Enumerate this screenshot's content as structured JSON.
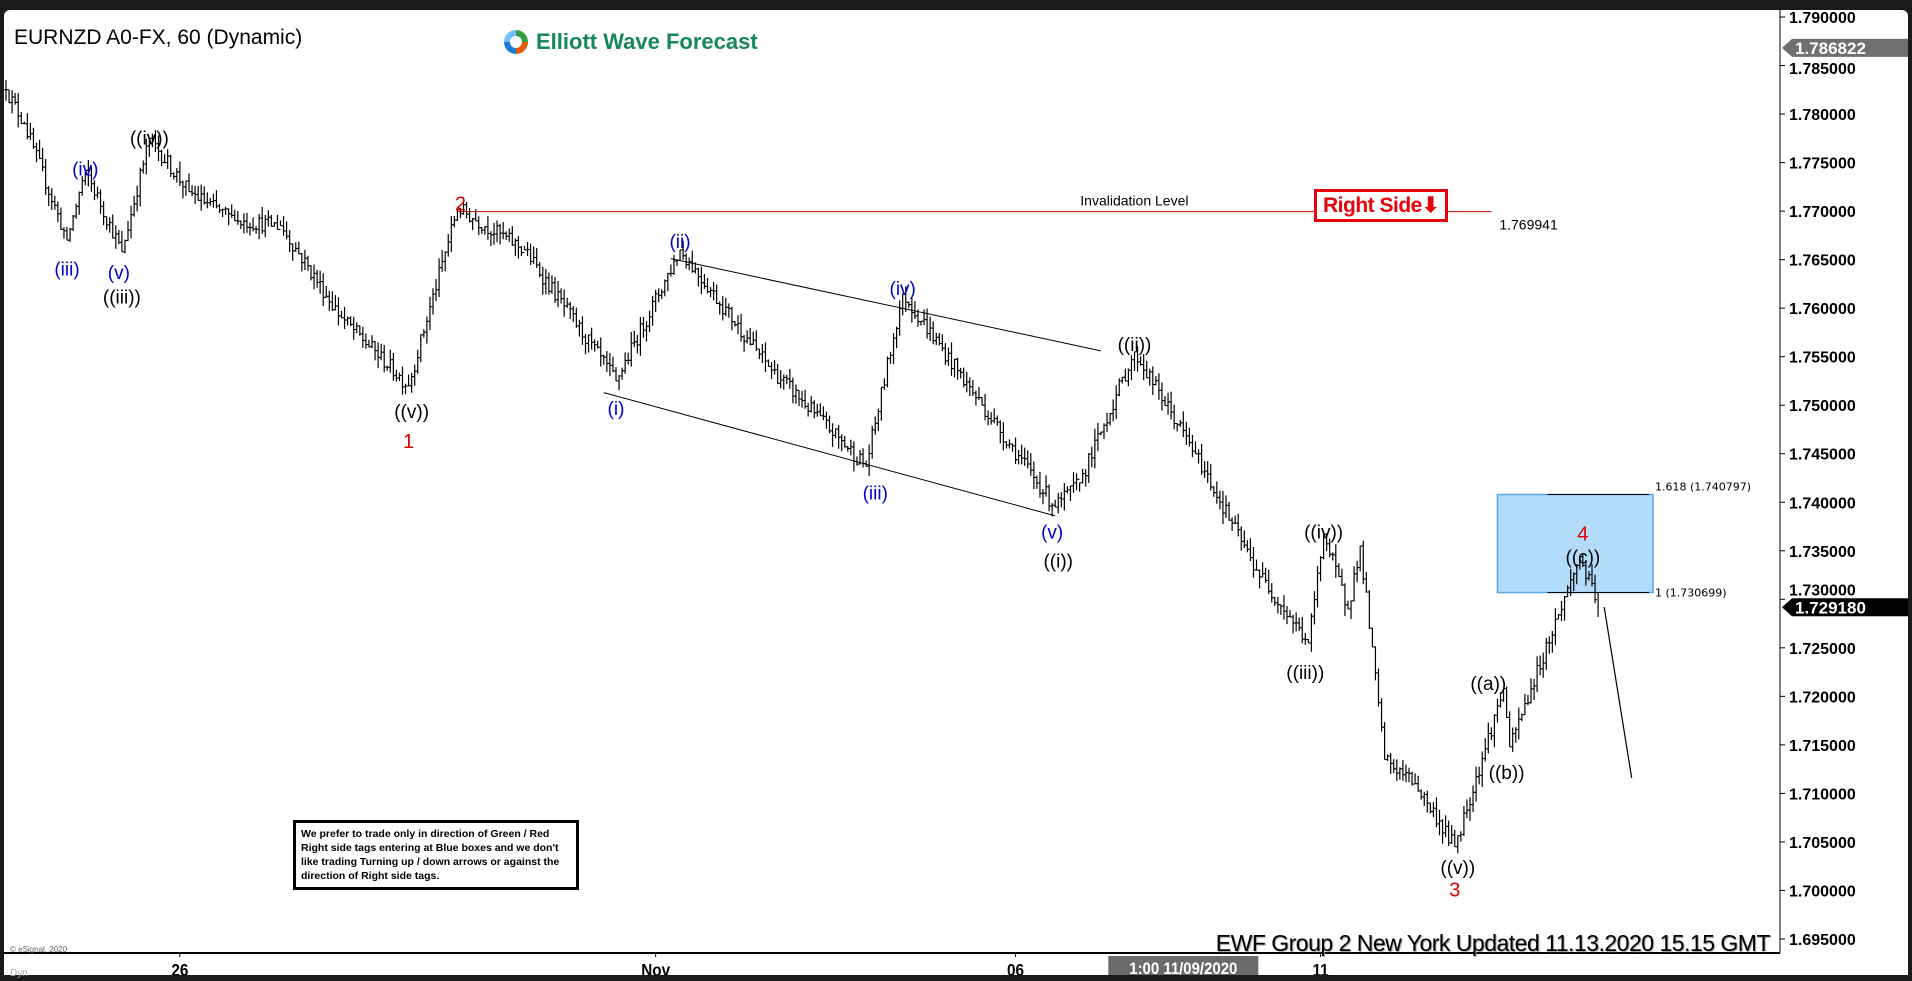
{
  "header": {
    "title": "EURNZD A0-FX, 60 (Dynamic)",
    "logo_text": "Elliott Wave Forecast"
  },
  "footer": {
    "updated": "EWF Group 2 New York Updated 11.13.2020 15.15 GMT",
    "copyright": "© eSignal, 2020",
    "dyn": "Dyn"
  },
  "disclaimer": "We prefer to trade only in direction of Green / Red Right side tags entering at Blue boxes and we don't like trading Turning up / down arrows or against the direction of Right side tags.",
  "right_side_tag": {
    "label": "Right Side",
    "arrow": "⬇",
    "color": "#e8000b"
  },
  "crosshair_time": "1:00 11/09/2020",
  "chart_data": {
    "type": "ohlc",
    "symbol": "EURNZD",
    "timeframe": "60",
    "ylim": [
      1.695,
      1.79
    ],
    "y_ticks": [
      "1.790000",
      "1.785000",
      "1.780000",
      "1.775000",
      "1.770000",
      "1.765000",
      "1.760000",
      "1.755000",
      "1.750000",
      "1.745000",
      "1.740000",
      "1.735000",
      "1.730000",
      "1.725000",
      "1.720000",
      "1.715000",
      "1.710000",
      "1.705000",
      "1.700000",
      "1.695000"
    ],
    "x_ticks": [
      {
        "bar": 57,
        "label": "26"
      },
      {
        "bar": 213,
        "label": "Nov"
      },
      {
        "bar": 331,
        "label": "06"
      },
      {
        "bar": 431,
        "label": "11"
      }
    ],
    "crosshair_bar": 386,
    "price_path": [
      [
        0,
        1.7825
      ],
      [
        6,
        1.779
      ],
      [
        20,
        1.767
      ],
      [
        26,
        1.7742
      ],
      [
        38,
        1.7658
      ],
      [
        47,
        1.7775
      ],
      [
        60,
        1.772
      ],
      [
        75,
        1.769
      ],
      [
        90,
        1.7685
      ],
      [
        110,
        1.759
      ],
      [
        132,
        1.752
      ],
      [
        148,
        1.7703
      ],
      [
        170,
        1.766
      ],
      [
        200,
        1.7525
      ],
      [
        221,
        1.766
      ],
      [
        250,
        1.754
      ],
      [
        282,
        1.7437
      ],
      [
        294,
        1.7615
      ],
      [
        320,
        1.75
      ],
      [
        344,
        1.7395
      ],
      [
        352,
        1.742
      ],
      [
        370,
        1.7555
      ],
      [
        390,
        1.745
      ],
      [
        410,
        1.733
      ],
      [
        427,
        1.7255
      ],
      [
        432,
        1.7367
      ],
      [
        440,
        1.729
      ],
      [
        444,
        1.7355
      ],
      [
        452,
        1.7135
      ],
      [
        462,
        1.711
      ],
      [
        475,
        1.7045
      ],
      [
        491,
        1.7208
      ],
      [
        493,
        1.7148
      ],
      [
        516,
        1.7344
      ],
      [
        522,
        1.72918
      ]
    ],
    "last_price": {
      "label": "1.729180",
      "value": 1.72918
    },
    "high_marker": {
      "label": "1.786822",
      "value": 1.786822
    },
    "invalidation": {
      "label": "Invalidation Level",
      "price_label": "1.769941",
      "value": 1.769941,
      "from_bar": 148,
      "to_bar": 487,
      "color": "#d00000"
    },
    "channel": [
      {
        "from": [
          196,
          1.7513
        ],
        "to": [
          344,
          1.7386
        ]
      },
      {
        "from": [
          218,
          1.7651
        ],
        "to": [
          359,
          1.7556
        ]
      }
    ],
    "projection": {
      "from": [
        524,
        1.7292
      ],
      "to": [
        533,
        1.7116
      ]
    },
    "blue_box": {
      "from_bar": 489,
      "to_bar": 540,
      "low": 1.730699,
      "high": 1.740797,
      "color": "#b3dcfb",
      "low_label": "1 (1.730699)",
      "high_label": "1.618 (1.740797)"
    },
    "wave_labels": [
      {
        "text": "(iii)",
        "bar": 20,
        "price": 1.7641,
        "color": "#0000cc"
      },
      {
        "text": "(iv)",
        "bar": 26,
        "price": 1.7744,
        "color": "#0000cc"
      },
      {
        "text": "(v)",
        "bar": 37,
        "price": 1.7637,
        "color": "#0000cc"
      },
      {
        "text": "((iii))",
        "bar": 38,
        "price": 1.7612,
        "color": "#000000"
      },
      {
        "text": "((iv))",
        "bar": 47,
        "price": 1.7776,
        "color": "#000000"
      },
      {
        "text": "((v))",
        "bar": 133,
        "price": 1.7494,
        "color": "#000000"
      },
      {
        "text": "1",
        "bar": 132,
        "price": 1.7463,
        "color": "#e00000"
      },
      {
        "text": "2",
        "bar": 149,
        "price": 1.7708,
        "color": "#e00000"
      },
      {
        "text": "(i)",
        "bar": 200,
        "price": 1.7497,
        "color": "#0000cc"
      },
      {
        "text": "(ii)",
        "bar": 221,
        "price": 1.7669,
        "color": "#0000cc"
      },
      {
        "text": "(iii)",
        "bar": 285,
        "price": 1.741,
        "color": "#0000cc"
      },
      {
        "text": "(iv)",
        "bar": 294,
        "price": 1.7621,
        "color": "#0000cc"
      },
      {
        "text": "(v)",
        "bar": 343,
        "price": 1.737,
        "color": "#0000cc"
      },
      {
        "text": "((i))",
        "bar": 345,
        "price": 1.734,
        "color": "#000000"
      },
      {
        "text": "((ii))",
        "bar": 370,
        "price": 1.7563,
        "color": "#000000"
      },
      {
        "text": "((iii))",
        "bar": 426,
        "price": 1.7225,
        "color": "#000000"
      },
      {
        "text": "((iv))",
        "bar": 432,
        "price": 1.737,
        "color": "#000000"
      },
      {
        "text": "((v))",
        "bar": 476,
        "price": 1.7024,
        "color": "#000000"
      },
      {
        "text": "3",
        "bar": 475,
        "price": 1.7001,
        "color": "#e00000"
      },
      {
        "text": "((a))",
        "bar": 486,
        "price": 1.7214,
        "color": "#000000"
      },
      {
        "text": "((b))",
        "bar": 492,
        "price": 1.7122,
        "color": "#000000"
      },
      {
        "text": "4",
        "bar": 517,
        "price": 1.7366,
        "color": "#e00000"
      },
      {
        "text": "((c))",
        "bar": 517,
        "price": 1.7346,
        "color": "#000000"
      }
    ]
  }
}
